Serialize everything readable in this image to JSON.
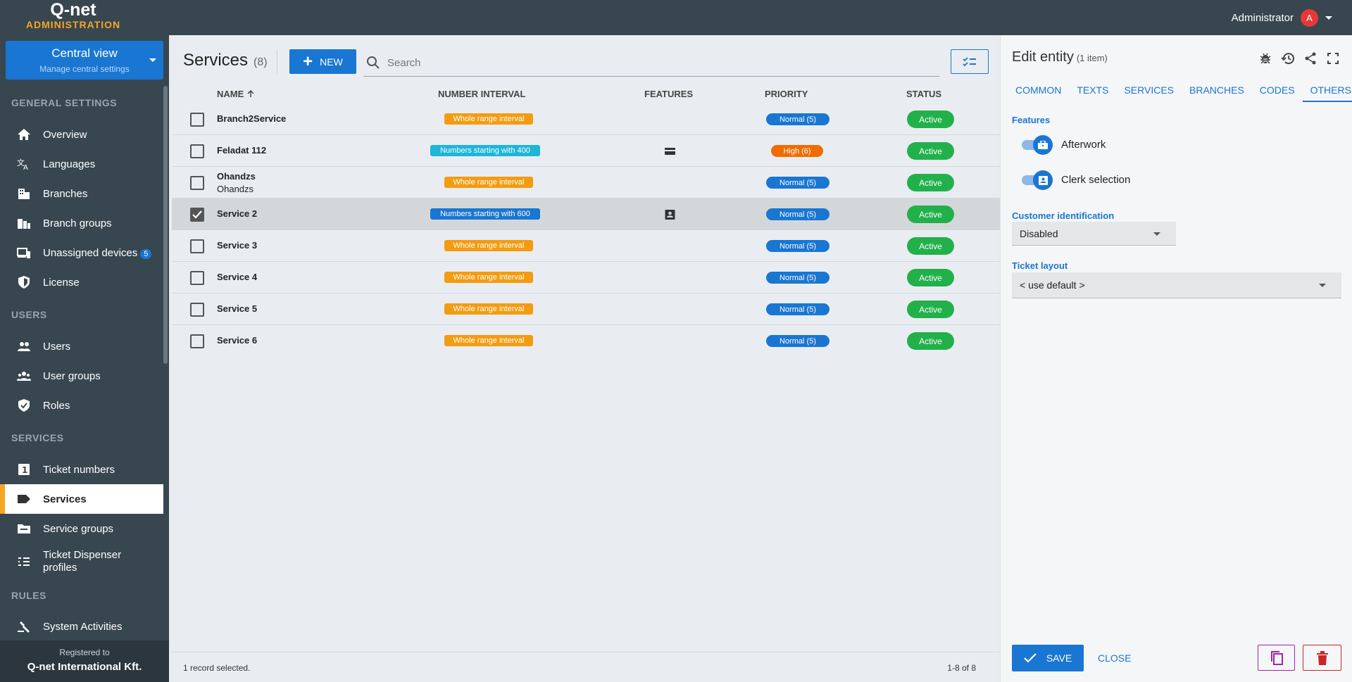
{
  "app": {
    "logo_top": "Q-net",
    "logo_bottom": "ADMINISTRATION",
    "user": "Administrator",
    "avatar_letter": "A"
  },
  "sidebar": {
    "central_title": "Central view",
    "central_sub": "Manage central settings",
    "sections": {
      "general": "GENERAL SETTINGS",
      "users": "USERS",
      "services": "SERVICES",
      "rules": "RULES"
    },
    "items": [
      {
        "label": "Overview",
        "icon": "home-icon"
      },
      {
        "label": "Languages",
        "icon": "translate-icon"
      },
      {
        "label": "Branches",
        "icon": "building-icon"
      },
      {
        "label": "Branch groups",
        "icon": "building-group-icon"
      },
      {
        "label": "Unassigned devices",
        "icon": "devices-icon",
        "badge": "5"
      },
      {
        "label": "License",
        "icon": "shield-icon"
      },
      {
        "label": "Users",
        "icon": "people-icon"
      },
      {
        "label": "User groups",
        "icon": "groups-icon"
      },
      {
        "label": "Roles",
        "icon": "shield-check-icon"
      },
      {
        "label": "Ticket numbers",
        "icon": "number-box-icon"
      },
      {
        "label": "Services",
        "icon": "label-icon",
        "active": true
      },
      {
        "label": "Service groups",
        "icon": "folder-icon"
      },
      {
        "label": "Ticket Dispenser profiles",
        "icon": "list-icon"
      },
      {
        "label": "System Activities",
        "icon": "gavel-icon"
      }
    ],
    "registered_label": "Registered to",
    "registered_to": "Q-net International Kft."
  },
  "main": {
    "title": "Services",
    "count": "(8)",
    "new_label": "NEW",
    "search_placeholder": "Search",
    "columns": {
      "name": "NAME",
      "interval": "NUMBER INTERVAL",
      "features": "FEATURES",
      "priority": "PRIORITY",
      "status": "STATUS"
    },
    "rows": [
      {
        "name": "Branch2Service",
        "sub": "",
        "interval": "Whole range interval",
        "priority": "Normal (5)",
        "status": "Active"
      },
      {
        "name": "Feladat 112",
        "sub": "",
        "interval": "Numbers starting with 400",
        "priority": "High (6)",
        "status": "Active"
      },
      {
        "name": "Ohandzs",
        "sub": "Ohandzs",
        "interval": "Whole range interval",
        "priority": "Normal (5)",
        "status": "Active"
      },
      {
        "name": "Service 2",
        "sub": "",
        "interval": "Numbers starting with 600",
        "priority": "Normal (5)",
        "status": "Active"
      },
      {
        "name": "Service 3",
        "sub": "",
        "interval": "Whole range interval",
        "priority": "Normal (5)",
        "status": "Active"
      },
      {
        "name": "Service 4",
        "sub": "",
        "interval": "Whole range interval",
        "priority": "Normal (5)",
        "status": "Active"
      },
      {
        "name": "Service 5",
        "sub": "",
        "interval": "Whole range interval",
        "priority": "Normal (5)",
        "status": "Active"
      },
      {
        "name": "Service 6",
        "sub": "",
        "interval": "Whole range interval",
        "priority": "Normal (5)",
        "status": "Active"
      }
    ],
    "footer_selected": "1 record selected.",
    "footer_range": "1-8 of 8"
  },
  "panel": {
    "title": "Edit entity",
    "count": "(1 item)",
    "tabs": [
      "COMMON",
      "TEXTS",
      "SERVICES",
      "BRANCHES",
      "CODES",
      "OTHERS"
    ],
    "features_label": "Features",
    "toggle1": "Afterwork",
    "toggle2": "Clerk selection",
    "customer_id_label": "Customer identification",
    "customer_id_value": "Disabled",
    "ticket_layout_label": "Ticket layout",
    "ticket_layout_value": "< use default >",
    "save_label": "SAVE",
    "close_label": "CLOSE"
  },
  "colors": {
    "accent": "#1976d2",
    "orange": "#f5a623",
    "high": "#ef6c00",
    "active": "#22b04b",
    "cyan": "#1eb5d8",
    "sidebar": "#384650"
  }
}
